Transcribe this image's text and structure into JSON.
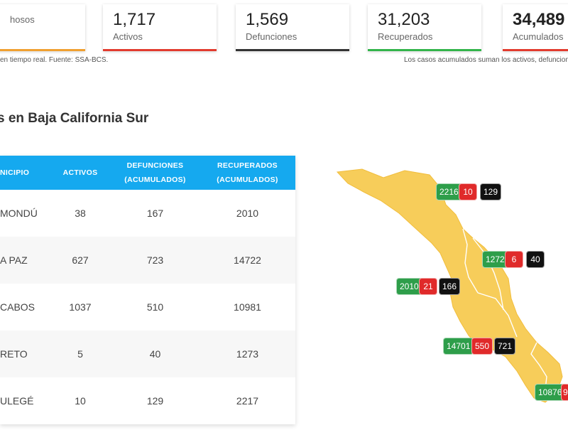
{
  "cards": [
    {
      "value": "",
      "label": "hosos",
      "color": "#f0a030"
    },
    {
      "value": "1,717",
      "label": "Activos",
      "color": "#e23b2e"
    },
    {
      "value": "1,569",
      "label": "Defunciones",
      "color": "#333333"
    },
    {
      "value": "31,203",
      "label": "Recuperados",
      "color": "#32b44a"
    },
    {
      "value": "34,489",
      "label": "Acumulados",
      "color": "#e23b2e"
    }
  ],
  "notes": {
    "left": "en tiempo real. Fuente: SSA-BCS.",
    "right": "Los casos acumulados suman los activos, defuncion"
  },
  "section_title": "s en Baja California Sur",
  "table": {
    "headers": [
      [
        "NICIPIO",
        ""
      ],
      [
        "ACTIVOS",
        ""
      ],
      [
        "DEFUNCIONES",
        "(ACUMULADOS)"
      ],
      [
        "RECUPERADOS",
        "(ACUMULADOS)"
      ]
    ],
    "rows": [
      {
        "municipio": "MONDÚ",
        "activos": "38",
        "defunciones": "167",
        "recuperados": "2010"
      },
      {
        "municipio": "A PAZ",
        "activos": "627",
        "defunciones": "723",
        "recuperados": "14722"
      },
      {
        "municipio": "CABOS",
        "activos": "1037",
        "defunciones": "510",
        "recuperados": "10981"
      },
      {
        "municipio": "RETO",
        "activos": "5",
        "defunciones": "40",
        "recuperados": "1273"
      },
      {
        "municipio": "ULEGÉ",
        "activos": "10",
        "defunciones": "129",
        "recuperados": "2217"
      }
    ]
  },
  "map": {
    "fill_color": "#f7cd5a",
    "badges": [
      [
        "2216",
        "10",
        "129"
      ],
      [
        "1272",
        "6",
        "40"
      ],
      [
        "2010",
        "21",
        "166"
      ],
      [
        "14701",
        "550",
        "721"
      ],
      [
        "10876",
        "9",
        ""
      ]
    ]
  }
}
